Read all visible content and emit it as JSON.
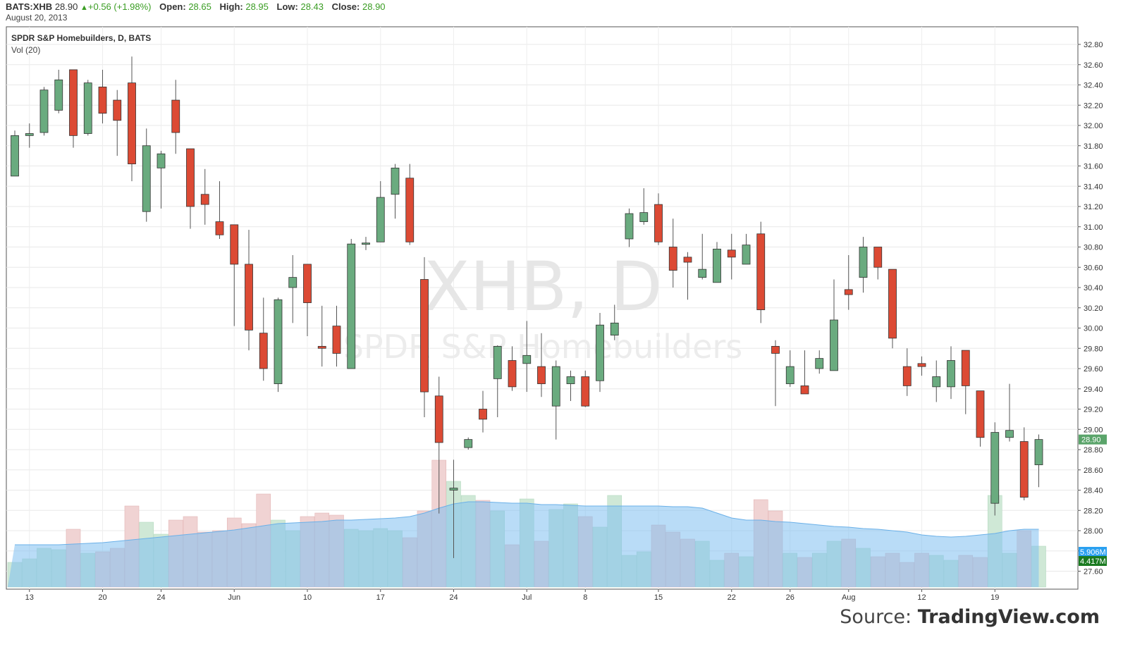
{
  "header": {
    "symbol": "BATS:XHB",
    "last": "28.90",
    "change": "+0.56 (+1.98%)",
    "open_label": "Open:",
    "open": "28.65",
    "high_label": "High:",
    "high": "28.95",
    "low_label": "Low:",
    "low": "28.43",
    "close_label": "Close:",
    "close": "28.90",
    "date": "August 20, 2013"
  },
  "legend": {
    "title": "SPDR S&P Homebuilders, D, BATS",
    "volume_label": "Vol (20)"
  },
  "watermark": {
    "main": "XHB, D",
    "sub": "SPDR S&P Homebuilders"
  },
  "source": {
    "prefix": "Source: ",
    "brand": "TradingView.com"
  },
  "colors": {
    "up": "#6aab7f",
    "down": "#dc4a34",
    "up_vol": "#cfe8d6",
    "down_vol": "#f0d3d3",
    "vol_ma": "#7fbff0",
    "last_price_badge": "#5aa46a",
    "vol_badge_1": "#2aa0f0",
    "vol_badge_2": "#1a7a20"
  },
  "chart_data": {
    "type": "candlestick",
    "title": "SPDR S&P Homebuilders, D, BATS",
    "ylim": [
      27.5,
      32.95
    ],
    "y_ticks": [
      "27.60",
      "27.80",
      "28.00",
      "28.20",
      "28.40",
      "28.60",
      "28.80",
      "29.00",
      "29.20",
      "29.40",
      "29.60",
      "29.80",
      "30.00",
      "30.20",
      "30.40",
      "30.60",
      "30.80",
      "31.00",
      "31.20",
      "31.40",
      "31.60",
      "31.80",
      "32.00",
      "32.20",
      "32.40",
      "32.60",
      "32.80"
    ],
    "x_ticks": [
      "13",
      "20",
      "24",
      "Jun",
      "10",
      "17",
      "24",
      "Jul",
      "8",
      "15",
      "22",
      "26",
      "Aug",
      "12",
      "19"
    ],
    "last_price_label": "28.90",
    "volume_labels": [
      "5.906M",
      "4.417M"
    ],
    "candles": [
      {
        "o": 31.5,
        "h": 31.95,
        "l": 31.5,
        "c": 31.9
      },
      {
        "o": 31.9,
        "h": 32.02,
        "l": 31.78,
        "c": 31.92
      },
      {
        "o": 31.93,
        "h": 32.38,
        "l": 31.9,
        "c": 32.35
      },
      {
        "o": 32.15,
        "h": 32.55,
        "l": 32.12,
        "c": 32.45
      },
      {
        "o": 32.55,
        "h": 32.55,
        "l": 31.78,
        "c": 31.9
      },
      {
        "o": 31.92,
        "h": 32.45,
        "l": 31.9,
        "c": 32.42
      },
      {
        "o": 32.38,
        "h": 32.55,
        "l": 32.02,
        "c": 32.12
      },
      {
        "o": 32.25,
        "h": 32.35,
        "l": 31.7,
        "c": 32.05
      },
      {
        "o": 32.42,
        "h": 32.68,
        "l": 31.45,
        "c": 31.62
      },
      {
        "o": 31.15,
        "h": 31.97,
        "l": 31.05,
        "c": 31.8
      },
      {
        "o": 31.58,
        "h": 31.75,
        "l": 31.18,
        "c": 31.72
      },
      {
        "o": 32.25,
        "h": 32.45,
        "l": 31.72,
        "c": 31.93
      },
      {
        "o": 31.77,
        "h": 31.77,
        "l": 30.98,
        "c": 31.2
      },
      {
        "o": 31.32,
        "h": 31.57,
        "l": 31.02,
        "c": 31.22
      },
      {
        "o": 31.05,
        "h": 31.45,
        "l": 30.88,
        "c": 30.92
      },
      {
        "o": 31.02,
        "h": 31.02,
        "l": 30.02,
        "c": 30.63
      },
      {
        "o": 30.63,
        "h": 30.97,
        "l": 29.78,
        "c": 29.98
      },
      {
        "o": 29.95,
        "h": 30.3,
        "l": 29.48,
        "c": 29.6
      },
      {
        "o": 29.45,
        "h": 30.3,
        "l": 29.37,
        "c": 30.28
      },
      {
        "o": 30.4,
        "h": 30.72,
        "l": 30.05,
        "c": 30.5
      },
      {
        "o": 30.63,
        "h": 30.63,
        "l": 29.92,
        "c": 30.25
      },
      {
        "o": 29.82,
        "h": 30.22,
        "l": 29.62,
        "c": 29.8
      },
      {
        "o": 30.02,
        "h": 30.22,
        "l": 29.62,
        "c": 29.75
      },
      {
        "o": 29.6,
        "h": 30.88,
        "l": 29.6,
        "c": 30.83
      },
      {
        "o": 30.83,
        "h": 30.9,
        "l": 30.77,
        "c": 30.84
      },
      {
        "o": 30.85,
        "h": 31.45,
        "l": 30.85,
        "c": 31.29
      },
      {
        "o": 31.32,
        "h": 31.62,
        "l": 31.08,
        "c": 31.58
      },
      {
        "o": 31.48,
        "h": 31.62,
        "l": 30.82,
        "c": 30.85
      },
      {
        "o": 30.48,
        "h": 30.7,
        "l": 29.12,
        "c": 29.37
      },
      {
        "o": 29.33,
        "h": 29.52,
        "l": 28.17,
        "c": 28.87
      },
      {
        "o": 28.4,
        "h": 28.7,
        "l": 27.73,
        "c": 28.42
      },
      {
        "o": 28.82,
        "h": 28.92,
        "l": 28.8,
        "c": 28.9
      },
      {
        "o": 29.2,
        "h": 29.38,
        "l": 28.97,
        "c": 29.1
      },
      {
        "o": 29.5,
        "h": 29.83,
        "l": 29.12,
        "c": 29.82
      },
      {
        "o": 29.68,
        "h": 29.82,
        "l": 29.38,
        "c": 29.42
      },
      {
        "o": 29.65,
        "h": 30.07,
        "l": 29.37,
        "c": 29.73
      },
      {
        "o": 29.62,
        "h": 29.95,
        "l": 29.32,
        "c": 29.45
      },
      {
        "o": 29.23,
        "h": 29.68,
        "l": 28.9,
        "c": 29.62
      },
      {
        "o": 29.45,
        "h": 29.58,
        "l": 29.28,
        "c": 29.52
      },
      {
        "o": 29.52,
        "h": 29.58,
        "l": 29.22,
        "c": 29.23
      },
      {
        "o": 29.48,
        "h": 30.15,
        "l": 29.37,
        "c": 30.03
      },
      {
        "o": 29.93,
        "h": 30.23,
        "l": 29.88,
        "c": 30.05
      },
      {
        "o": 30.88,
        "h": 31.18,
        "l": 30.8,
        "c": 31.13
      },
      {
        "o": 31.05,
        "h": 31.38,
        "l": 31.02,
        "c": 31.14
      },
      {
        "o": 31.22,
        "h": 31.33,
        "l": 30.82,
        "c": 30.85
      },
      {
        "o": 30.8,
        "h": 31.08,
        "l": 30.4,
        "c": 30.57
      },
      {
        "o": 30.7,
        "h": 30.75,
        "l": 30.28,
        "c": 30.65
      },
      {
        "o": 30.5,
        "h": 30.93,
        "l": 30.48,
        "c": 30.58
      },
      {
        "o": 30.45,
        "h": 30.85,
        "l": 30.45,
        "c": 30.78
      },
      {
        "o": 30.77,
        "h": 30.93,
        "l": 30.48,
        "c": 30.7
      },
      {
        "o": 30.63,
        "h": 30.93,
        "l": 30.63,
        "c": 30.82
      },
      {
        "o": 30.93,
        "h": 31.05,
        "l": 30.05,
        "c": 30.18
      },
      {
        "o": 29.82,
        "h": 29.88,
        "l": 29.23,
        "c": 29.75
      },
      {
        "o": 29.45,
        "h": 29.78,
        "l": 29.42,
        "c": 29.62
      },
      {
        "o": 29.43,
        "h": 29.78,
        "l": 29.35,
        "c": 29.35
      },
      {
        "o": 29.6,
        "h": 29.78,
        "l": 29.55,
        "c": 29.7
      },
      {
        "o": 29.58,
        "h": 30.48,
        "l": 29.58,
        "c": 30.08
      },
      {
        "o": 30.38,
        "h": 30.72,
        "l": 30.18,
        "c": 30.33
      },
      {
        "o": 30.5,
        "h": 30.9,
        "l": 30.35,
        "c": 30.8
      },
      {
        "o": 30.8,
        "h": 30.8,
        "l": 30.48,
        "c": 30.6
      },
      {
        "o": 30.58,
        "h": 30.58,
        "l": 29.8,
        "c": 29.9
      },
      {
        "o": 29.62,
        "h": 29.8,
        "l": 29.33,
        "c": 29.43
      },
      {
        "o": 29.65,
        "h": 29.72,
        "l": 29.53,
        "c": 29.62
      },
      {
        "o": 29.42,
        "h": 29.68,
        "l": 29.27,
        "c": 29.52
      },
      {
        "o": 29.42,
        "h": 29.82,
        "l": 29.3,
        "c": 29.68
      },
      {
        "o": 29.78,
        "h": 29.78,
        "l": 29.15,
        "c": 29.43
      },
      {
        "o": 29.38,
        "h": 29.38,
        "l": 28.83,
        "c": 28.92
      },
      {
        "o": 28.27,
        "h": 29.07,
        "l": 28.15,
        "c": 28.97
      },
      {
        "o": 28.92,
        "h": 29.45,
        "l": 28.88,
        "c": 28.99
      },
      {
        "o": 28.88,
        "h": 29.02,
        "l": 28.3,
        "c": 28.33
      },
      {
        "o": 28.65,
        "h": 28.95,
        "l": 28.43,
        "c": 28.9
      }
    ],
    "volumes": [
      0.35,
      0.4,
      0.55,
      0.53,
      0.82,
      0.48,
      0.5,
      0.55,
      1.15,
      0.92,
      0.75,
      0.95,
      1.0,
      0.78,
      0.8,
      0.98,
      0.9,
      1.32,
      0.95,
      0.8,
      1.0,
      1.05,
      1.02,
      0.82,
      0.8,
      0.83,
      0.8,
      0.7,
      1.08,
      1.8,
      1.5,
      1.3,
      1.23,
      1.08,
      0.6,
      1.25,
      0.65,
      1.1,
      1.18,
      1.0,
      0.85,
      1.3,
      0.45,
      0.5,
      0.88,
      0.78,
      0.68,
      0.65,
      0.38,
      0.48,
      0.43,
      1.24,
      1.08,
      0.48,
      0.42,
      0.48,
      0.65,
      0.68,
      0.55,
      0.43,
      0.48,
      0.35,
      0.48,
      0.45,
      0.38,
      0.45,
      0.42,
      1.3,
      0.48,
      0.8,
      0.58
    ],
    "volume_ma": [
      0.6,
      0.6,
      0.6,
      0.6,
      0.61,
      0.62,
      0.63,
      0.65,
      0.67,
      0.69,
      0.71,
      0.73,
      0.75,
      0.77,
      0.79,
      0.81,
      0.84,
      0.87,
      0.9,
      0.91,
      0.92,
      0.93,
      0.95,
      0.95,
      0.96,
      0.97,
      0.98,
      1.0,
      1.05,
      1.12,
      1.18,
      1.21,
      1.21,
      1.2,
      1.19,
      1.19,
      1.17,
      1.17,
      1.16,
      1.15,
      1.15,
      1.15,
      1.15,
      1.15,
      1.15,
      1.14,
      1.14,
      1.12,
      1.05,
      0.98,
      0.95,
      0.95,
      0.93,
      0.92,
      0.9,
      0.88,
      0.86,
      0.85,
      0.83,
      0.82,
      0.8,
      0.78,
      0.74,
      0.72,
      0.71,
      0.72,
      0.74,
      0.76,
      0.8,
      0.82,
      0.82
    ]
  }
}
